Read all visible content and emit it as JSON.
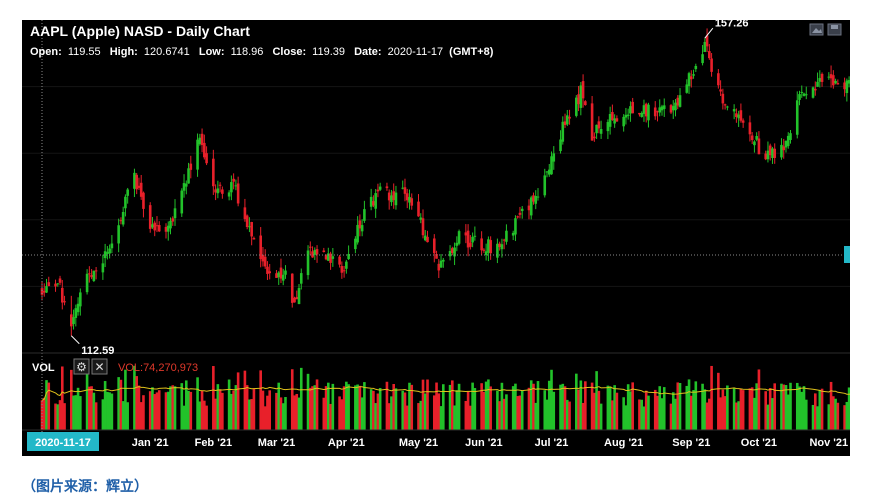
{
  "chart_data": {
    "type": "candlestick",
    "title": "AAPL (Apple) NASD - Daily Chart",
    "ohlc_readout": {
      "open_label": "Open:",
      "open": "119.55",
      "high_label": "High:",
      "high": "120.6741",
      "low_label": "Low:",
      "low": "118.96",
      "close_label": "Close:",
      "close": "119.39",
      "date_label": "Date:",
      "date": "2020-11-17",
      "tz": "(GMT+8)"
    },
    "price_range": [
      110,
      160
    ],
    "x_labels": [
      "Jan '21",
      "Feb '21",
      "Mar '21",
      "Apr '21",
      "May '21",
      "Jun '21",
      "Jul '21",
      "Aug '21",
      "Sep '21",
      "Oct '21",
      "Nov '21"
    ],
    "cursor_date_label": "2020-11-17",
    "annotations": [
      {
        "label": "157.26",
        "value": 157.26,
        "date": "2021-09-07"
      },
      {
        "label": "112.59",
        "value": 112.59,
        "date": "2020-11-30"
      }
    ],
    "volume_panel": {
      "label": "VOL",
      "readout": "VOL:74,270,973",
      "volume_max": 190000000
    },
    "price_waypoints": [
      [
        "2020-11-17",
        119.4
      ],
      [
        "2020-11-25",
        120.0
      ],
      [
        "2020-11-30",
        113.0
      ],
      [
        "2020-12-07",
        122.0
      ],
      [
        "2020-12-14",
        124.0
      ],
      [
        "2020-12-18",
        126.5
      ],
      [
        "2020-12-28",
        136.5
      ],
      [
        "2021-01-04",
        129.4
      ],
      [
        "2021-01-12",
        128.8
      ],
      [
        "2021-01-21",
        136.8
      ],
      [
        "2021-01-26",
        143.2
      ],
      [
        "2021-02-01",
        134.0
      ],
      [
        "2021-02-10",
        135.5
      ],
      [
        "2021-02-25",
        121.0
      ],
      [
        "2021-03-05",
        121.4
      ],
      [
        "2021-03-08",
        116.4
      ],
      [
        "2021-03-16",
        125.6
      ],
      [
        "2021-03-31",
        122.2
      ],
      [
        "2021-04-08",
        130.4
      ],
      [
        "2021-04-16",
        134.2
      ],
      [
        "2021-04-29",
        133.5
      ],
      [
        "2021-05-12",
        122.8
      ],
      [
        "2021-05-20",
        127.3
      ],
      [
        "2021-06-04",
        125.9
      ],
      [
        "2021-06-11",
        127.4
      ],
      [
        "2021-06-24",
        133.4
      ],
      [
        "2021-07-07",
        144.6
      ],
      [
        "2021-07-14",
        149.2
      ],
      [
        "2021-07-19",
        142.5
      ],
      [
        "2021-07-30",
        145.9
      ],
      [
        "2021-08-18",
        146.4
      ],
      [
        "2021-08-26",
        147.5
      ],
      [
        "2021-09-07",
        156.7
      ],
      [
        "2021-09-14",
        148.1
      ],
      [
        "2021-09-30",
        141.5
      ],
      [
        "2021-10-04",
        139.1
      ],
      [
        "2021-10-12",
        141.5
      ],
      [
        "2021-10-21",
        149.5
      ],
      [
        "2021-11-05",
        151.3
      ],
      [
        "2021-11-12",
        150.0
      ],
      [
        "2021-11-16",
        151.0
      ]
    ],
    "colors": {
      "up": "#22c22a",
      "down": "#e8202a",
      "volume_ma": "#e0c21a",
      "crosshair": "#8a8a8a",
      "cursor_tag": "#23b8c8",
      "text": "#ffffff",
      "readout": "#e0392b"
    }
  },
  "toolbar": {
    "gear_icon": "gear-icon",
    "close_icon": "close-icon",
    "picture_icon": "picture-icon",
    "save_icon": "save-icon"
  },
  "caption": "（图片来源：辉立）"
}
